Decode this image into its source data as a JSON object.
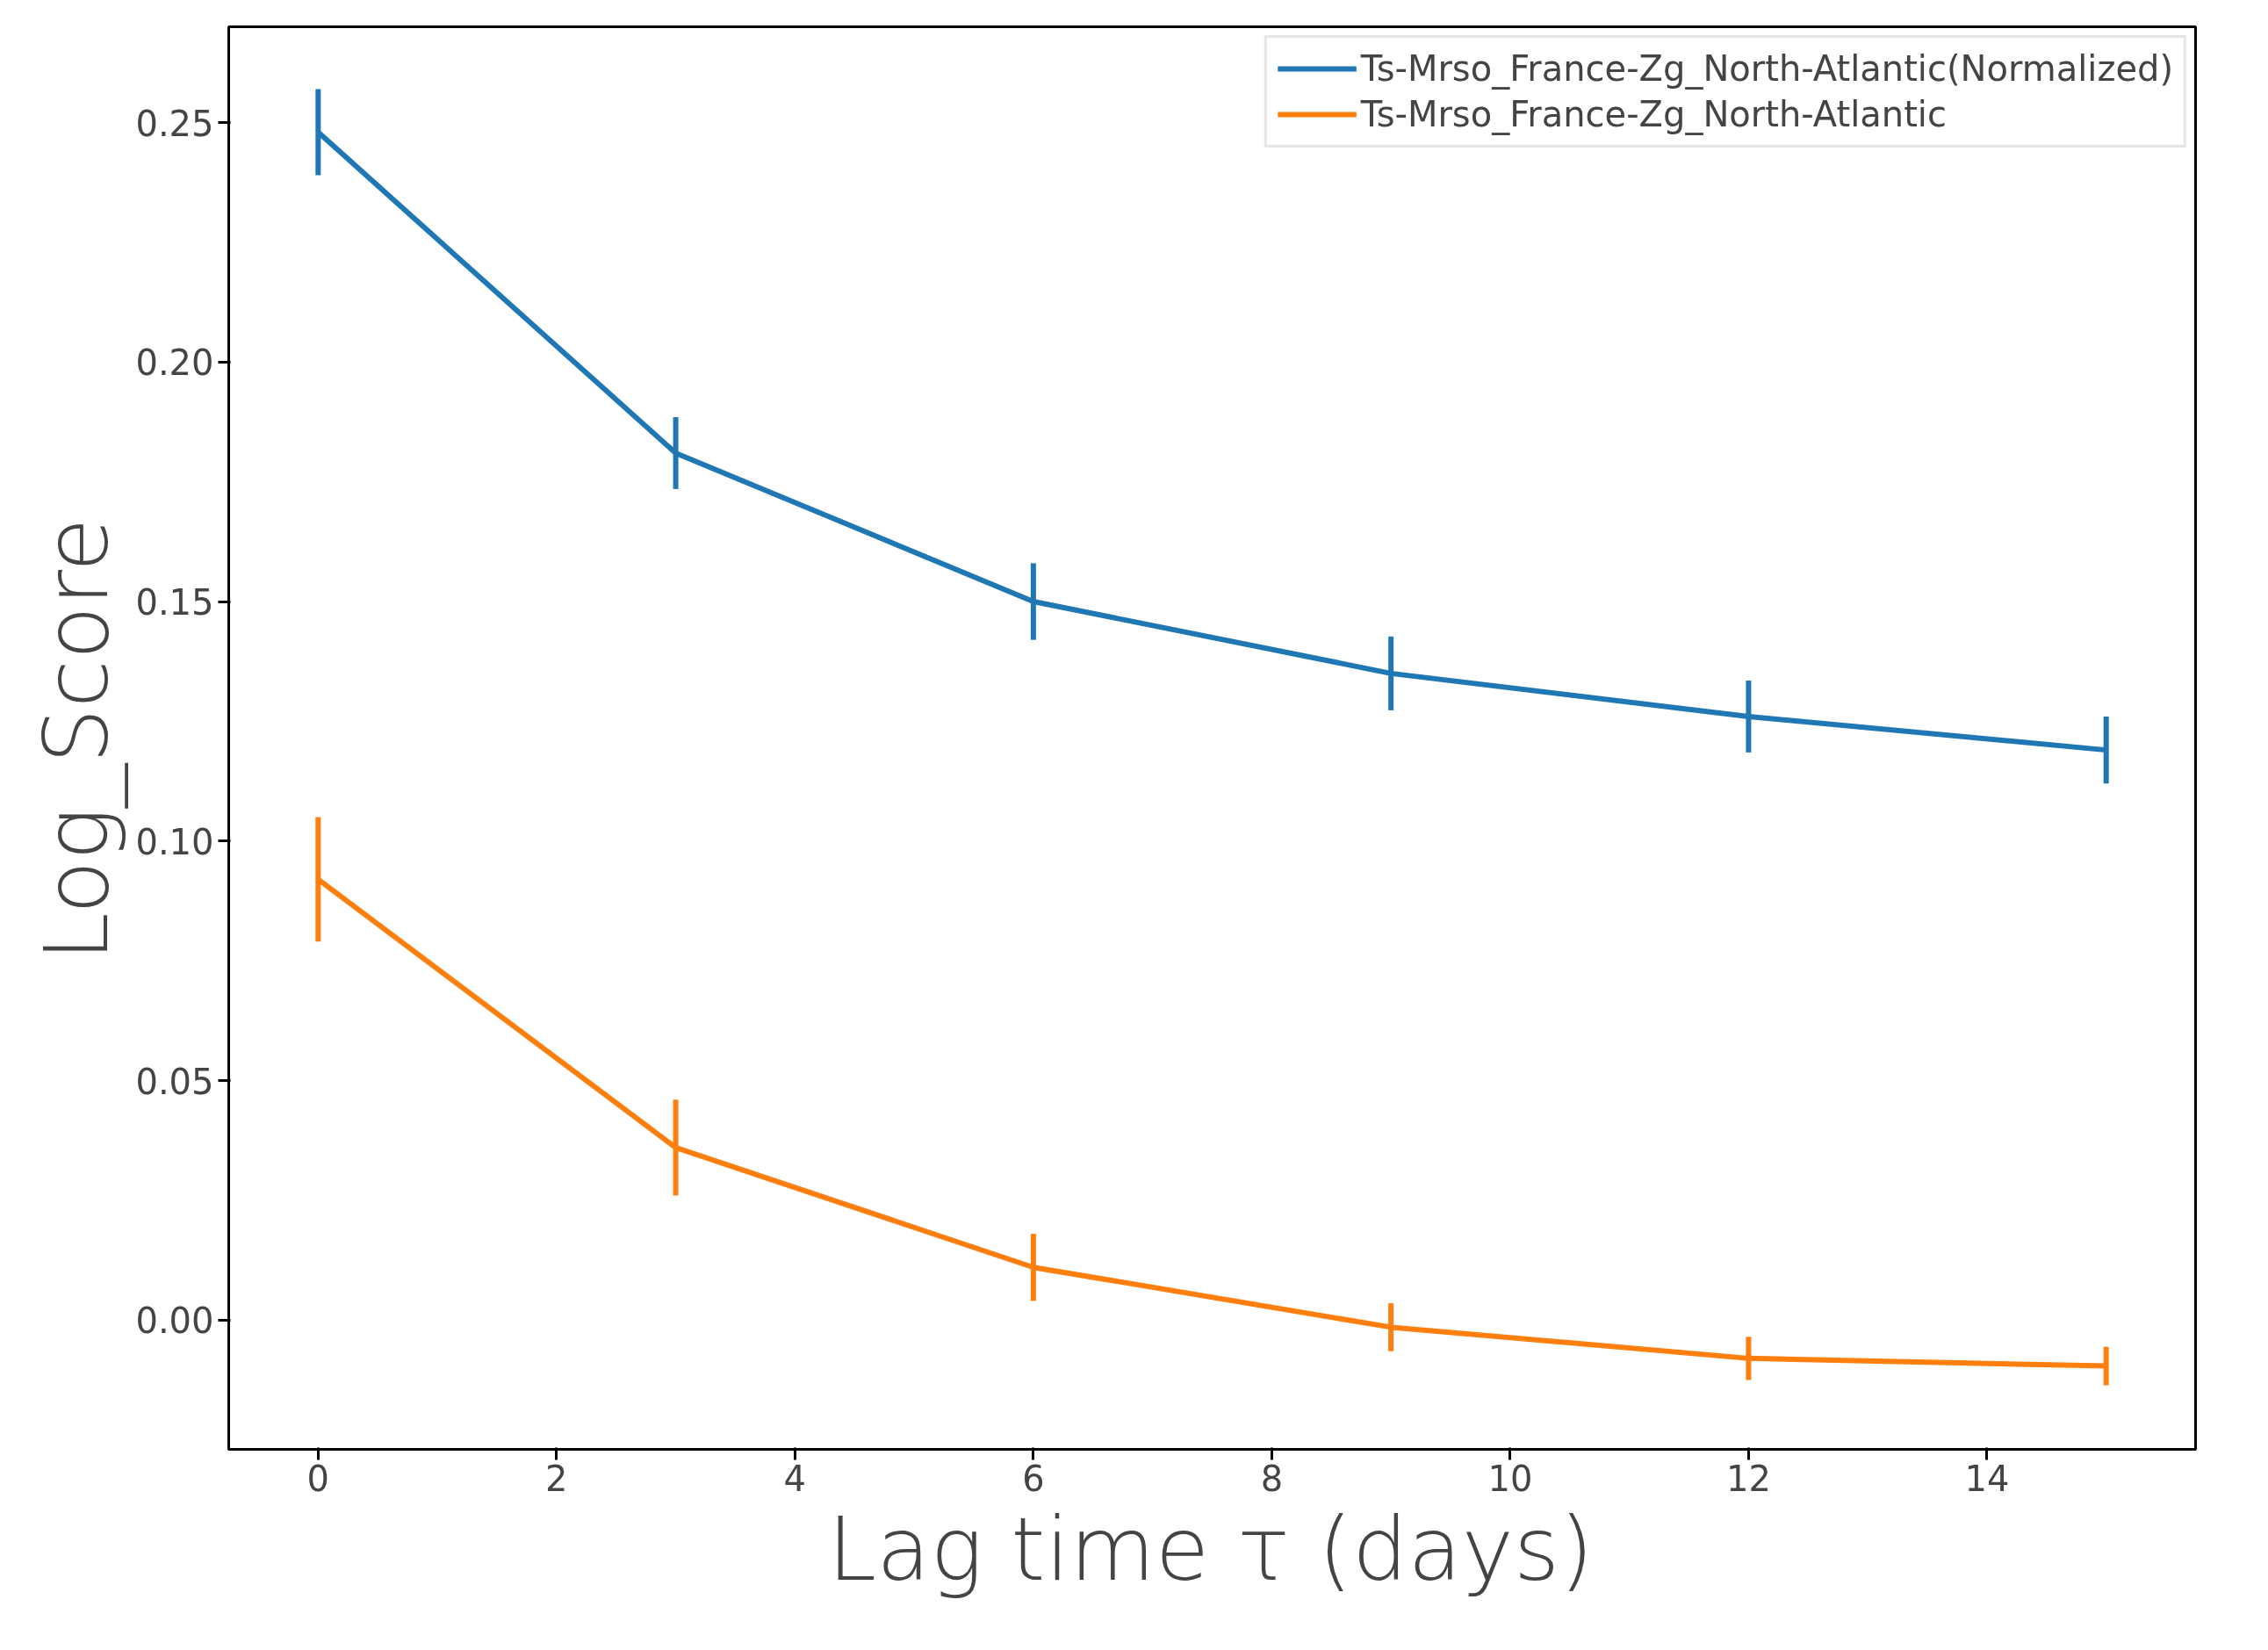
{
  "chart_data": {
    "type": "line",
    "xlabel": "Lag time τ (days)",
    "ylabel": "Log_Score",
    "x": [
      0,
      3,
      6,
      9,
      12,
      15
    ],
    "series": [
      {
        "name": "Ts-Mrso_France-Zg_North-Atlantic(Normalized)",
        "color": "#1f77b4",
        "values": [
          0.248,
          0.181,
          0.15,
          0.135,
          0.126,
          0.119
        ],
        "errors": [
          0.009,
          0.0075,
          0.008,
          0.0077,
          0.0075,
          0.007
        ]
      },
      {
        "name": "Ts-Mrso_France-Zg_North-Atlantic",
        "color": "#ff7f0e",
        "values": [
          0.092,
          0.036,
          0.011,
          -0.0015,
          -0.008,
          -0.0096
        ],
        "errors": [
          0.013,
          0.01,
          0.007,
          0.005,
          0.0045,
          0.004
        ]
      }
    ],
    "xlim": [
      -0.75,
      15.75
    ],
    "ylim": [
      -0.027,
      0.27
    ],
    "xticks": [
      0,
      2,
      4,
      6,
      8,
      10,
      12,
      14
    ],
    "yticks": [
      {
        "value": 0,
        "label": "0.00"
      },
      {
        "value": 0.05,
        "label": "0.05"
      },
      {
        "value": 0.1,
        "label": "0.10"
      },
      {
        "value": 0.15,
        "label": "0.15"
      },
      {
        "value": 0.2,
        "label": "0.20"
      },
      {
        "value": 0.25,
        "label": "0.25"
      }
    ],
    "legend": "top right",
    "grid": false,
    "marker": "none",
    "line_style": "solid"
  }
}
